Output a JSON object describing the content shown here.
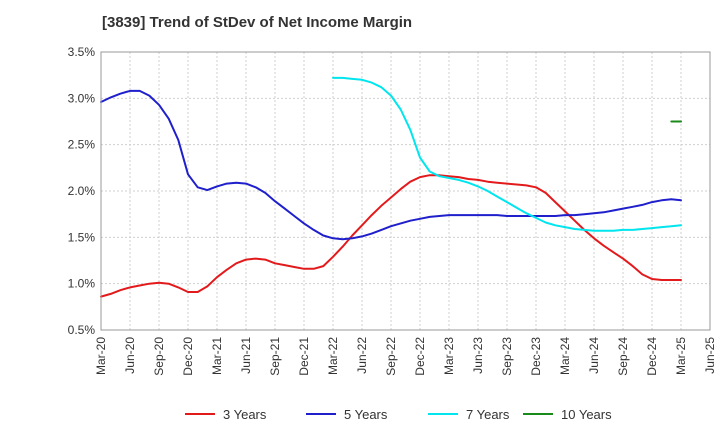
{
  "chart_data": {
    "type": "line",
    "title": "[3839]  Trend of StDev of Net Income Margin",
    "xlabel": "",
    "ylabel": "",
    "x_ticks": [
      "Mar-20",
      "Jun-20",
      "Sep-20",
      "Dec-20",
      "Mar-21",
      "Jun-21",
      "Sep-21",
      "Dec-21",
      "Mar-22",
      "Jun-22",
      "Sep-22",
      "Dec-22",
      "Mar-23",
      "Jun-23",
      "Sep-23",
      "Dec-23",
      "Mar-24",
      "Jun-24",
      "Sep-24",
      "Dec-24",
      "Mar-25",
      "Jun-25"
    ],
    "y_ticks": [
      "0.5%",
      "1.0%",
      "1.5%",
      "2.0%",
      "2.5%",
      "3.0%",
      "3.5%"
    ],
    "ylim": [
      0.5,
      3.5
    ],
    "grid": true,
    "legend_position": "bottom",
    "series": [
      {
        "name": "3 Years",
        "color": "#e31a1c",
        "x": [
          "Mar-20",
          "Apr-20",
          "May-20",
          "Jun-20",
          "Jul-20",
          "Aug-20",
          "Sep-20",
          "Oct-20",
          "Nov-20",
          "Dec-20",
          "Jan-21",
          "Feb-21",
          "Mar-21",
          "Apr-21",
          "May-21",
          "Jun-21",
          "Jul-21",
          "Aug-21",
          "Sep-21",
          "Oct-21",
          "Nov-21",
          "Dec-21",
          "Jan-22",
          "Feb-22",
          "Mar-22",
          "Apr-22",
          "May-22",
          "Jun-22",
          "Jul-22",
          "Aug-22",
          "Sep-22",
          "Oct-22",
          "Nov-22",
          "Dec-22",
          "Jan-23",
          "Feb-23",
          "Mar-23",
          "Apr-23",
          "May-23",
          "Jun-23",
          "Jul-23",
          "Aug-23",
          "Sep-23",
          "Oct-23",
          "Nov-23",
          "Dec-23",
          "Jan-24",
          "Feb-24",
          "Mar-24",
          "Apr-24",
          "May-24",
          "Jun-24",
          "Jul-24",
          "Aug-24",
          "Sep-24",
          "Oct-24",
          "Nov-24",
          "Dec-24",
          "Jan-25",
          "Feb-25",
          "Mar-25"
        ],
        "values": [
          0.86,
          0.89,
          0.93,
          0.96,
          0.98,
          1.0,
          1.01,
          1.0,
          0.96,
          0.91,
          0.91,
          0.97,
          1.07,
          1.15,
          1.22,
          1.26,
          1.27,
          1.26,
          1.22,
          1.2,
          1.18,
          1.16,
          1.16,
          1.19,
          1.29,
          1.4,
          1.52,
          1.63,
          1.74,
          1.84,
          1.93,
          2.02,
          2.1,
          2.15,
          2.17,
          2.17,
          2.16,
          2.15,
          2.13,
          2.12,
          2.1,
          2.09,
          2.08,
          2.07,
          2.06,
          2.04,
          1.98,
          1.88,
          1.78,
          1.68,
          1.58,
          1.49,
          1.41,
          1.34,
          1.27,
          1.19,
          1.1,
          1.05,
          1.04,
          1.04,
          1.04
        ]
      },
      {
        "name": "5 Years",
        "color": "#1f1fcc",
        "x": [
          "Mar-20",
          "Apr-20",
          "May-20",
          "Jun-20",
          "Jul-20",
          "Aug-20",
          "Sep-20",
          "Oct-20",
          "Nov-20",
          "Dec-20",
          "Jan-21",
          "Feb-21",
          "Mar-21",
          "Apr-21",
          "May-21",
          "Jun-21",
          "Jul-21",
          "Aug-21",
          "Sep-21",
          "Oct-21",
          "Nov-21",
          "Dec-21",
          "Jan-22",
          "Feb-22",
          "Mar-22",
          "Apr-22",
          "May-22",
          "Jun-22",
          "Jul-22",
          "Aug-22",
          "Sep-22",
          "Oct-22",
          "Nov-22",
          "Dec-22",
          "Jan-23",
          "Feb-23",
          "Mar-23",
          "Apr-23",
          "May-23",
          "Jun-23",
          "Jul-23",
          "Aug-23",
          "Sep-23",
          "Oct-23",
          "Nov-23",
          "Dec-23",
          "Jan-24",
          "Feb-24",
          "Mar-24",
          "Apr-24",
          "May-24",
          "Jun-24",
          "Jul-24",
          "Aug-24",
          "Sep-24",
          "Oct-24",
          "Nov-24",
          "Dec-24",
          "Jan-25",
          "Feb-25",
          "Mar-25"
        ],
        "values": [
          2.96,
          3.01,
          3.05,
          3.08,
          3.08,
          3.03,
          2.93,
          2.78,
          2.55,
          2.18,
          2.04,
          2.01,
          2.05,
          2.08,
          2.09,
          2.08,
          2.04,
          1.98,
          1.89,
          1.81,
          1.73,
          1.65,
          1.58,
          1.52,
          1.49,
          1.48,
          1.49,
          1.51,
          1.54,
          1.58,
          1.62,
          1.65,
          1.68,
          1.7,
          1.72,
          1.73,
          1.74,
          1.74,
          1.74,
          1.74,
          1.74,
          1.74,
          1.73,
          1.73,
          1.73,
          1.73,
          1.73,
          1.73,
          1.74,
          1.74,
          1.75,
          1.76,
          1.77,
          1.79,
          1.81,
          1.83,
          1.85,
          1.88,
          1.9,
          1.91,
          1.9
        ]
      },
      {
        "name": "7 Years",
        "color": "#00e5ee",
        "x": [
          "Mar-22",
          "Apr-22",
          "May-22",
          "Jun-22",
          "Jul-22",
          "Aug-22",
          "Sep-22",
          "Oct-22",
          "Nov-22",
          "Dec-22",
          "Jan-23",
          "Feb-23",
          "Mar-23",
          "Apr-23",
          "May-23",
          "Jun-23",
          "Jul-23",
          "Aug-23",
          "Sep-23",
          "Oct-23",
          "Nov-23",
          "Dec-23",
          "Jan-24",
          "Feb-24",
          "Mar-24",
          "Apr-24",
          "May-24",
          "Jun-24",
          "Jul-24",
          "Aug-24",
          "Sep-24",
          "Oct-24",
          "Nov-24",
          "Dec-24",
          "Jan-25",
          "Feb-25",
          "Mar-25"
        ],
        "values": [
          3.22,
          3.22,
          3.21,
          3.2,
          3.17,
          3.12,
          3.03,
          2.88,
          2.66,
          2.36,
          2.21,
          2.16,
          2.14,
          2.12,
          2.09,
          2.05,
          2.0,
          1.94,
          1.88,
          1.82,
          1.76,
          1.71,
          1.66,
          1.63,
          1.61,
          1.59,
          1.58,
          1.57,
          1.57,
          1.57,
          1.58,
          1.58,
          1.59,
          1.6,
          1.61,
          1.62,
          1.63
        ]
      },
      {
        "name": "10 Years",
        "color": "#1a8a1a",
        "x": [
          "Feb-25",
          "Mar-25"
        ],
        "values": [
          2.75,
          2.75
        ]
      }
    ]
  }
}
